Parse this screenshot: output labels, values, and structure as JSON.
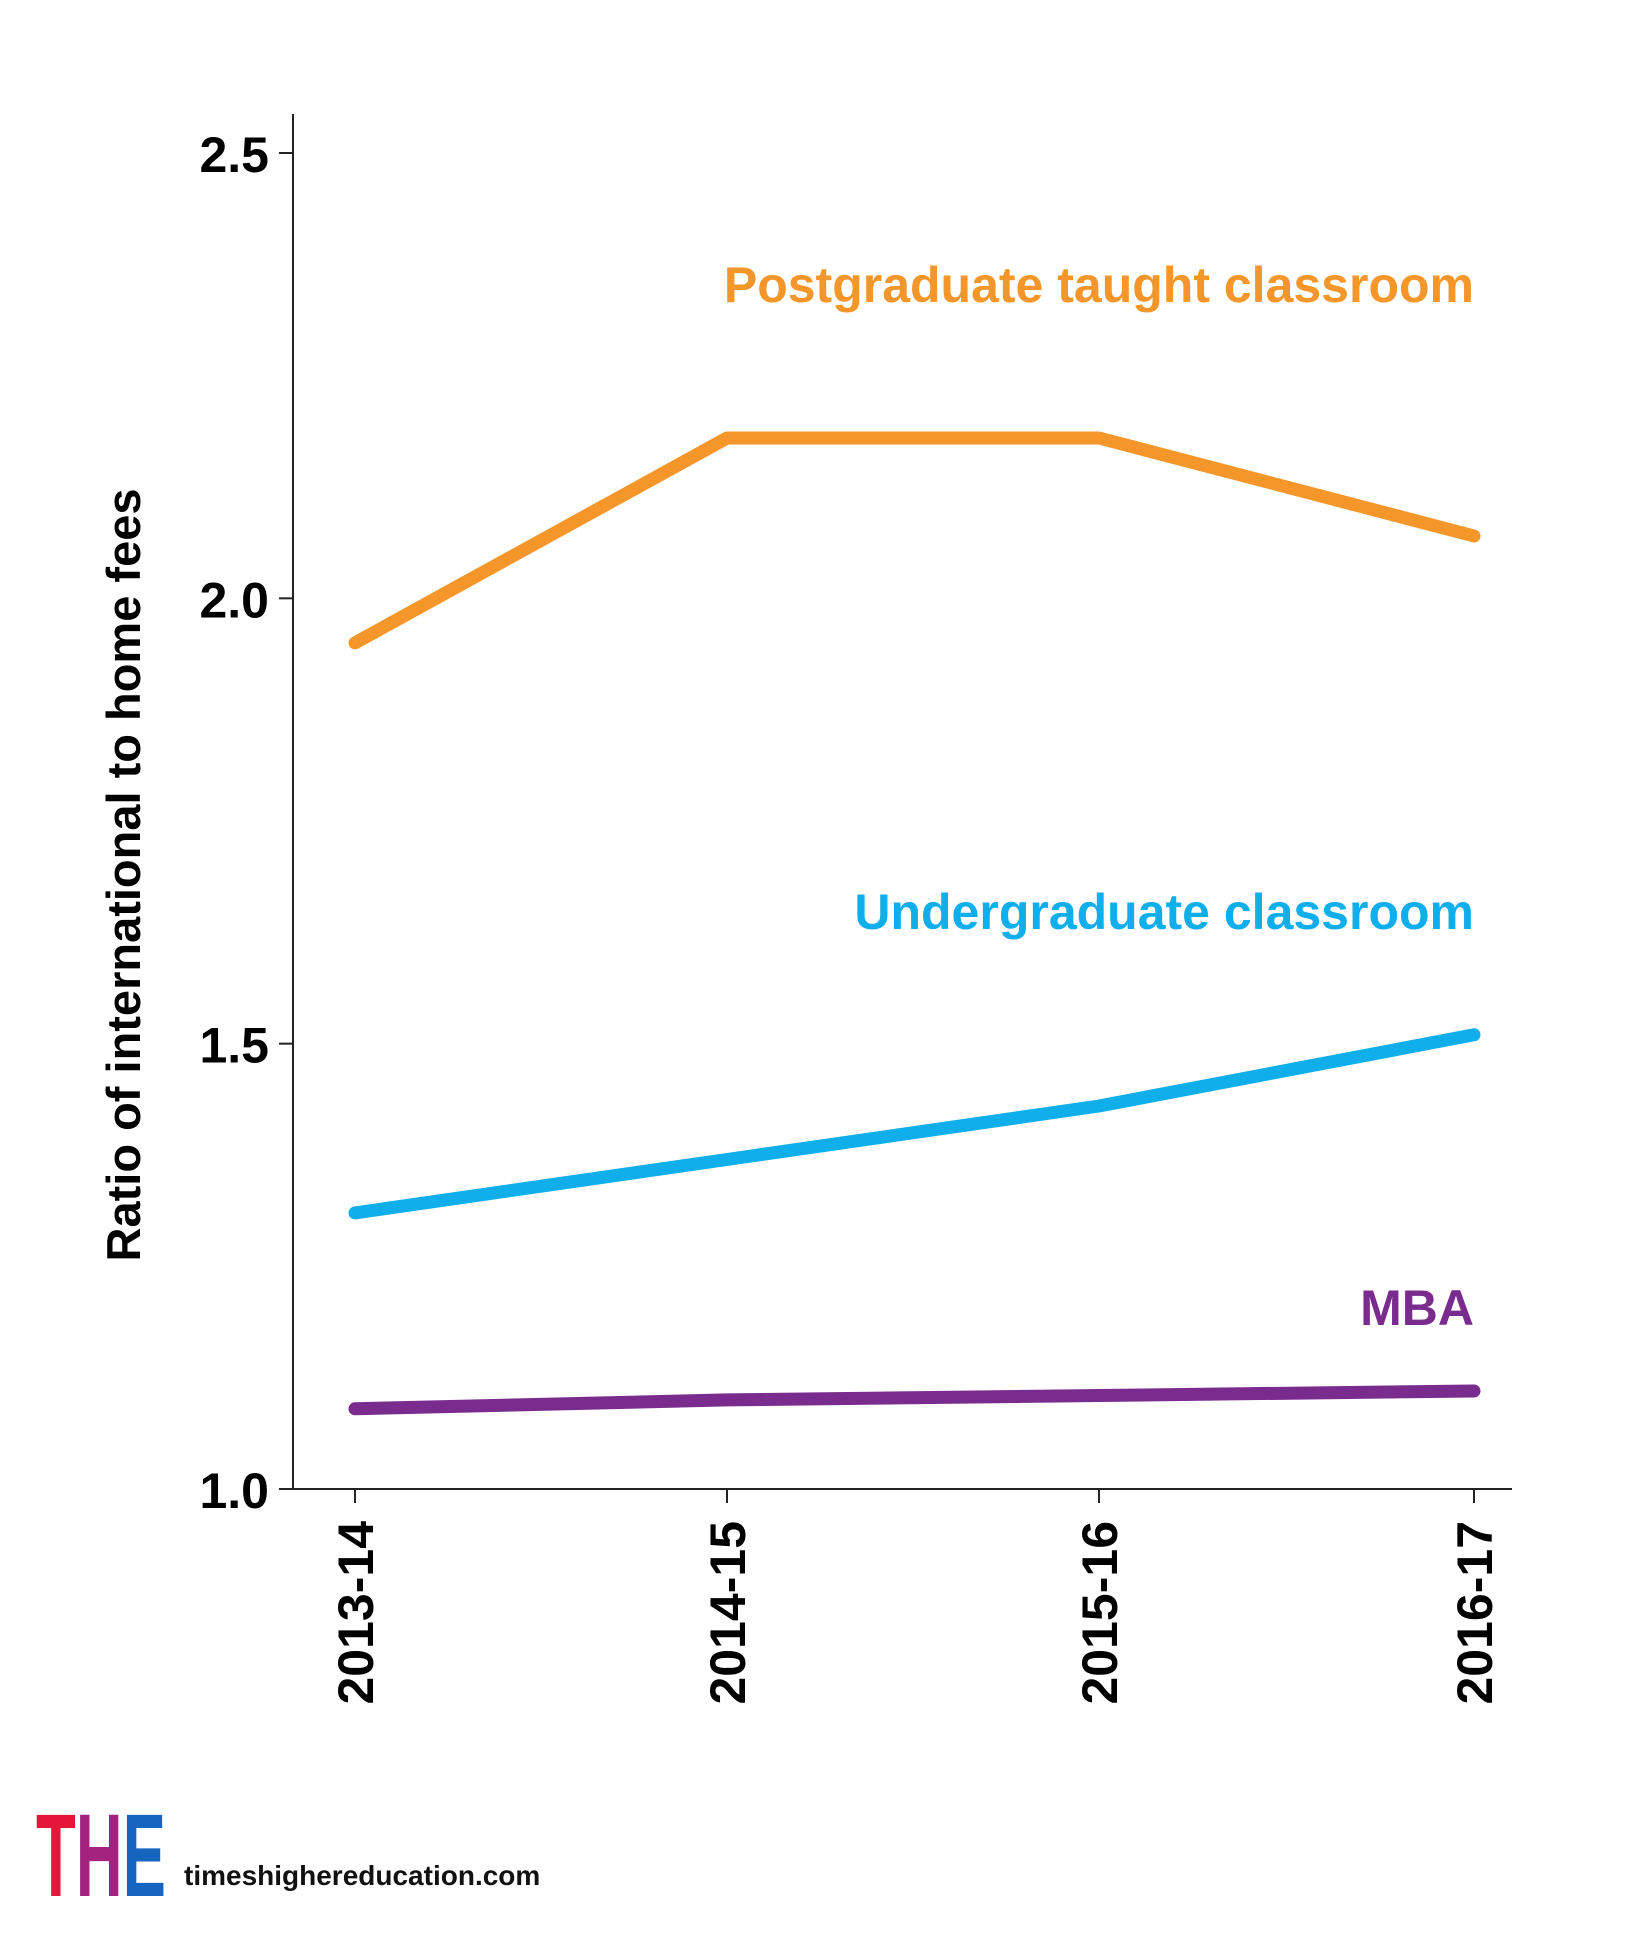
{
  "chart_data": {
    "type": "line",
    "categories": [
      "2013-14",
      "2014-15",
      "2015-16",
      "2016-17"
    ],
    "series": [
      {
        "name": "Postgraduate taught classroom",
        "color": "#F5962A",
        "values": [
          1.95,
          2.18,
          2.18,
          2.07
        ]
      },
      {
        "name": "Undergraduate classroom",
        "color": "#10AEEA",
        "values": [
          1.31,
          1.37,
          1.43,
          1.51
        ]
      },
      {
        "name": "MBA",
        "color": "#7A2B8E",
        "values": [
          1.09,
          1.1,
          1.105,
          1.11
        ]
      }
    ],
    "ylabel": "Ratio of international to home fees",
    "xlabel": "",
    "ylim": [
      1.0,
      2.5
    ],
    "yticks": [
      "1.0",
      "1.5",
      "2.0",
      "2.5"
    ],
    "grid": false,
    "legend": "inline labels at top-right of each line"
  },
  "branding": {
    "logo_text": "THE",
    "logo_colors": [
      "#E4173B",
      "#A4237E",
      "#1565C0"
    ],
    "site": "timeshighereducation.com"
  }
}
